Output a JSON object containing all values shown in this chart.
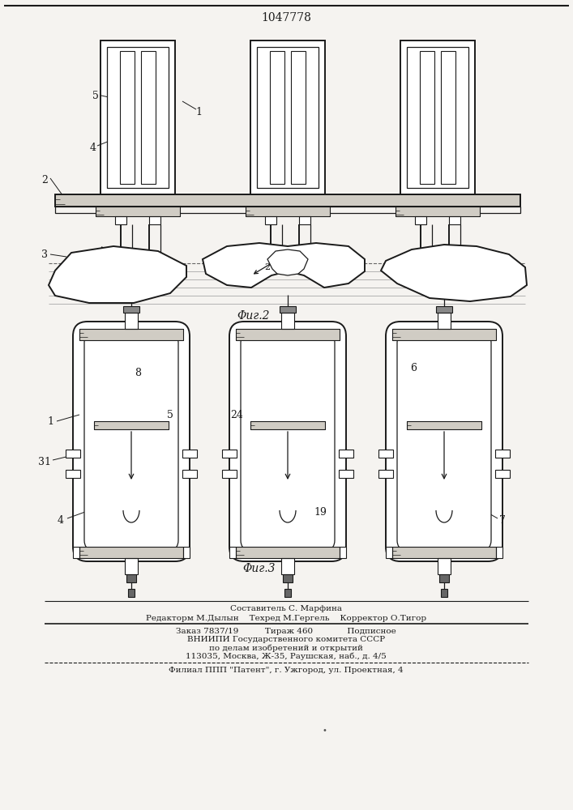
{
  "patent_number": "1047778",
  "bg_color": "#f5f3f0",
  "line_color": "#1a1a1a",
  "fig2_caption": "Φиг.2",
  "fig3_caption": "Φиг.3",
  "footer_lines": [
    "Составитель С. Марфина",
    "Редакторм М.Дылын    Техред М.Гергель    Корректор О.Тигор",
    "Заказ 7837/19          Тираж 460             Подписное",
    "ВНИИПИ Государственного комитета СССР",
    "по делам изобретений и открытий",
    "113035, Москва, Ж-35, Раушская, наб., д. 4/5",
    "Филиал ППП \"Патент\", г. Ужгород, ул. Проектная, 4"
  ]
}
